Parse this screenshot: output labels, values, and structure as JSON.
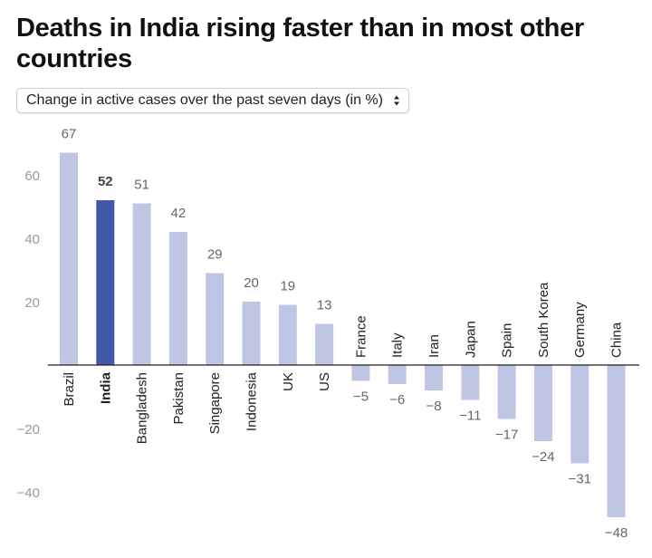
{
  "title": "Deaths in India rising faster than in most other countries",
  "selector": {
    "selected": "Change in active cases over the past seven days (in %)",
    "arrows_icon": "up-down-chevron-icon"
  },
  "colors": {
    "bar": "#bfc6e3",
    "highlight": "#4159a8",
    "axis": "#222222",
    "tick_text": "#999999",
    "value_text": "#666666",
    "label_text": "#222222"
  },
  "chart_data": {
    "type": "bar",
    "title": "",
    "xlabel": "",
    "ylabel": "",
    "categories": [
      "Brazil",
      "India",
      "Bangladesh",
      "Pakistan",
      "Singapore",
      "Indonesia",
      "UK",
      "US",
      "France",
      "Italy",
      "Iran",
      "Japan",
      "Spain",
      "South Korea",
      "Germany",
      "China"
    ],
    "values": [
      67,
      52,
      51,
      42,
      29,
      20,
      19,
      13,
      -5,
      -6,
      -8,
      -11,
      -17,
      -24,
      -31,
      -48
    ],
    "value_labels": [
      "67",
      "52",
      "51",
      "42",
      "29",
      "20",
      "19",
      "13",
      "−5",
      "−6",
      "−8",
      "−11",
      "−17",
      "−24",
      "−31",
      "−48"
    ],
    "highlight": "India",
    "yticks": [
      60,
      40,
      20,
      -20,
      -40
    ],
    "ytick_labels": [
      "60",
      "40",
      "20",
      "−20",
      "−40"
    ],
    "ylim": [
      -50,
      70
    ],
    "grid": false,
    "legend": "none"
  }
}
